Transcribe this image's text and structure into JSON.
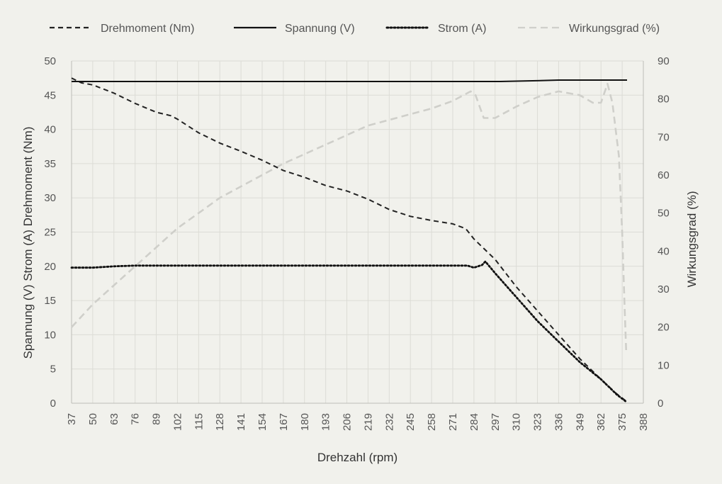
{
  "chart_data": {
    "type": "line",
    "xlabel": "Drehzahl (rpm)",
    "ylabel_left": "Spannung (V) Strom (A) Drehmoment (Nm)",
    "ylabel_right": "Wirkungsgrad (%)",
    "x_ticks": [
      "37",
      "50",
      "63",
      "76",
      "89",
      "102",
      "115",
      "128",
      "141",
      "154",
      "167",
      "180",
      "193",
      "206",
      "219",
      "232",
      "245",
      "258",
      "271",
      "284",
      "297",
      "310",
      "323",
      "336",
      "349",
      "362",
      "375",
      "388"
    ],
    "y_left_ticks": [
      "0",
      "5",
      "10",
      "15",
      "20",
      "25",
      "30",
      "35",
      "40",
      "45",
      "50"
    ],
    "y_right_ticks": [
      "0",
      "10",
      "20",
      "30",
      "40",
      "50",
      "60",
      "70",
      "80",
      "90"
    ],
    "xlim": [
      37,
      388
    ],
    "ylim_left": [
      0,
      50
    ],
    "ylim_right": [
      0,
      90
    ],
    "grid": true,
    "legend_position": "top",
    "series": [
      {
        "name": "Drehmoment (Nm)",
        "axis": "left",
        "style": "dashed",
        "color": "#222222",
        "points": [
          [
            37,
            47.5
          ],
          [
            43,
            46.8
          ],
          [
            50,
            46.5
          ],
          [
            63,
            45.3
          ],
          [
            76,
            43.8
          ],
          [
            89,
            42.5
          ],
          [
            98,
            42.0
          ],
          [
            102,
            41.5
          ],
          [
            115,
            39.5
          ],
          [
            128,
            38.0
          ],
          [
            141,
            36.8
          ],
          [
            154,
            35.5
          ],
          [
            167,
            34.0
          ],
          [
            180,
            33.0
          ],
          [
            193,
            31.8
          ],
          [
            206,
            31.0
          ],
          [
            219,
            29.8
          ],
          [
            232,
            28.3
          ],
          [
            245,
            27.3
          ],
          [
            258,
            26.7
          ],
          [
            271,
            26.2
          ],
          [
            279,
            25.5
          ],
          [
            284,
            24.0
          ],
          [
            297,
            21.0
          ],
          [
            310,
            17.0
          ],
          [
            323,
            13.5
          ],
          [
            336,
            10.0
          ],
          [
            349,
            6.5
          ],
          [
            362,
            3.5
          ],
          [
            371,
            1.5
          ],
          [
            378,
            0.2
          ]
        ]
      },
      {
        "name": "Spannung (V)",
        "axis": "left",
        "style": "solid",
        "color": "#111111",
        "points": [
          [
            37,
            47.0
          ],
          [
            100,
            47.0
          ],
          [
            200,
            47.0
          ],
          [
            300,
            47.0
          ],
          [
            320,
            47.1
          ],
          [
            336,
            47.2
          ],
          [
            360,
            47.2
          ],
          [
            378,
            47.2
          ]
        ]
      },
      {
        "name": "Strom (A)",
        "axis": "left",
        "style": "dotted",
        "color": "#111111",
        "points": [
          [
            37,
            19.8
          ],
          [
            50,
            19.8
          ],
          [
            63,
            20.0
          ],
          [
            76,
            20.1
          ],
          [
            89,
            20.1
          ],
          [
            102,
            20.1
          ],
          [
            128,
            20.1
          ],
          [
            154,
            20.1
          ],
          [
            180,
            20.1
          ],
          [
            206,
            20.1
          ],
          [
            232,
            20.1
          ],
          [
            258,
            20.1
          ],
          [
            271,
            20.1
          ],
          [
            280,
            20.1
          ],
          [
            284,
            19.8
          ],
          [
            289,
            20.2
          ],
          [
            291,
            20.7
          ],
          [
            297,
            19.0
          ],
          [
            310,
            15.5
          ],
          [
            323,
            12.0
          ],
          [
            336,
            9.0
          ],
          [
            349,
            6.0
          ],
          [
            362,
            3.5
          ],
          [
            372,
            1.2
          ],
          [
            377,
            0.3
          ]
        ]
      },
      {
        "name": "Wirkungsgrad (%)",
        "axis": "right",
        "style": "dashed",
        "color": "#cfcfca",
        "points": [
          [
            37,
            20
          ],
          [
            50,
            26
          ],
          [
            63,
            31
          ],
          [
            76,
            36
          ],
          [
            89,
            41
          ],
          [
            102,
            46
          ],
          [
            115,
            50
          ],
          [
            128,
            54
          ],
          [
            141,
            57
          ],
          [
            154,
            60
          ],
          [
            167,
            63
          ],
          [
            180,
            65.5
          ],
          [
            193,
            68
          ],
          [
            206,
            70.5
          ],
          [
            219,
            73
          ],
          [
            232,
            74.5
          ],
          [
            245,
            76
          ],
          [
            258,
            77.5
          ],
          [
            271,
            79.5
          ],
          [
            282,
            82
          ],
          [
            285,
            81
          ],
          [
            290,
            75
          ],
          [
            297,
            75
          ],
          [
            310,
            78
          ],
          [
            323,
            80.5
          ],
          [
            336,
            82
          ],
          [
            349,
            81
          ],
          [
            357,
            79
          ],
          [
            362,
            79
          ],
          [
            366,
            84
          ],
          [
            369,
            79
          ],
          [
            373,
            65
          ],
          [
            375,
            45
          ],
          [
            376.5,
            25
          ],
          [
            377.5,
            13
          ]
        ]
      }
    ]
  }
}
